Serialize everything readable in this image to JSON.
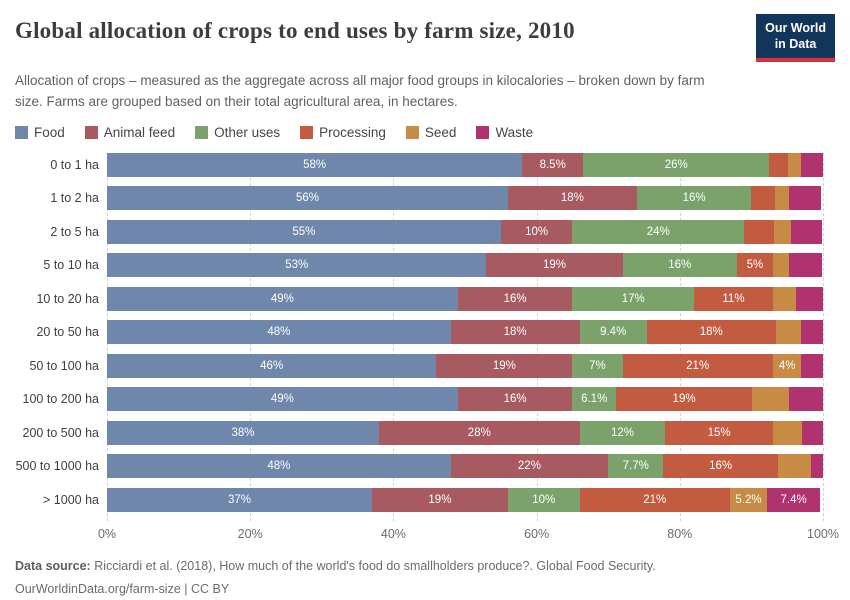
{
  "header": {
    "title": "Global allocation of crops to end uses by farm size, 2010",
    "subtitle": "Allocation of crops – measured as the aggregate across all major food groups in kilocalories – broken down by farm size. Farms are grouped based on their total agricultural area, in hectares.",
    "logo_line1": "Our World",
    "logo_line2": "in Data",
    "logo_bg": "#12355b",
    "logo_underline": "#d9303e"
  },
  "footer": {
    "source_label": "Data source:",
    "source_text": "Ricciardi et al. (2018), How much of the world's food do smallholders produce?. Global Food Security.",
    "attribution": "OurWorldinData.org/farm-size | CC BY"
  },
  "chart_data": {
    "type": "bar",
    "orientation": "horizontal-stacked",
    "title": "Global allocation of crops to end uses by farm size, 2010",
    "xlabel": "",
    "ylabel": "",
    "xlim": [
      0,
      100
    ],
    "grid": "dashed-vertical",
    "legend_position": "top",
    "x_ticks": [
      "0%",
      "20%",
      "40%",
      "60%",
      "80%",
      "100%"
    ],
    "series": [
      {
        "name": "Food",
        "color": "#6f87ab"
      },
      {
        "name": "Animal feed",
        "color": "#a75a60"
      },
      {
        "name": "Other uses",
        "color": "#7ba26a"
      },
      {
        "name": "Processing",
        "color": "#c35b40"
      },
      {
        "name": "Seed",
        "color": "#c78b46"
      },
      {
        "name": "Waste",
        "color": "#b0336f"
      }
    ],
    "categories": [
      "0 to 1 ha",
      "1 to 2 ha",
      "2 to 5 ha",
      "5 to 10 ha",
      "10 to 20 ha",
      "20 to 50 ha",
      "50 to 100 ha",
      "100 to 200 ha",
      "200 to 500 ha",
      "500 to 1000 ha",
      "> 1000 ha"
    ],
    "rows": [
      {
        "category": "0 to 1 ha",
        "segments": [
          {
            "value": 58,
            "label": "58%"
          },
          {
            "value": 8.5,
            "label": "8.5%"
          },
          {
            "value": 26,
            "label": "26%"
          },
          {
            "value": 2.6,
            "label": ""
          },
          {
            "value": 1.8,
            "label": ""
          },
          {
            "value": 3.1,
            "label": ""
          }
        ]
      },
      {
        "category": "1 to 2 ha",
        "segments": [
          {
            "value": 56,
            "label": "56%"
          },
          {
            "value": 18,
            "label": "18%"
          },
          {
            "value": 16,
            "label": "16%"
          },
          {
            "value": 3.3,
            "label": ""
          },
          {
            "value": 2.0,
            "label": ""
          },
          {
            "value": 4.4,
            "label": ""
          }
        ]
      },
      {
        "category": "2 to 5 ha",
        "segments": [
          {
            "value": 55,
            "label": "55%"
          },
          {
            "value": 10,
            "label": "10%"
          },
          {
            "value": 24,
            "label": "24%"
          },
          {
            "value": 4.2,
            "label": ""
          },
          {
            "value": 2.3,
            "label": ""
          },
          {
            "value": 4.4,
            "label": ""
          }
        ]
      },
      {
        "category": "5 to 10 ha",
        "segments": [
          {
            "value": 53,
            "label": "53%"
          },
          {
            "value": 19,
            "label": "19%"
          },
          {
            "value": 16,
            "label": "16%"
          },
          {
            "value": 5,
            "label": "5%"
          },
          {
            "value": 2.3,
            "label": ""
          },
          {
            "value": 4.6,
            "label": ""
          }
        ]
      },
      {
        "category": "10 to 20 ha",
        "segments": [
          {
            "value": 49,
            "label": "49%"
          },
          {
            "value": 16,
            "label": "16%"
          },
          {
            "value": 17,
            "label": "17%"
          },
          {
            "value": 11,
            "label": "11%"
          },
          {
            "value": 3.2,
            "label": ""
          },
          {
            "value": 3.8,
            "label": ""
          }
        ]
      },
      {
        "category": "20 to 50 ha",
        "segments": [
          {
            "value": 48,
            "label": "48%"
          },
          {
            "value": 18,
            "label": "18%"
          },
          {
            "value": 9.4,
            "label": "9.4%"
          },
          {
            "value": 18,
            "label": "18%"
          },
          {
            "value": 3.5,
            "label": ""
          },
          {
            "value": 3.1,
            "label": ""
          }
        ]
      },
      {
        "category": "50 to 100 ha",
        "segments": [
          {
            "value": 46,
            "label": "46%"
          },
          {
            "value": 19,
            "label": "19%"
          },
          {
            "value": 7,
            "label": "7%"
          },
          {
            "value": 21,
            "label": "21%"
          },
          {
            "value": 4,
            "label": "4%"
          },
          {
            "value": 3.0,
            "label": ""
          }
        ]
      },
      {
        "category": "100 to 200 ha",
        "segments": [
          {
            "value": 49,
            "label": "49%"
          },
          {
            "value": 16,
            "label": "16%"
          },
          {
            "value": 6.1,
            "label": "6.1%"
          },
          {
            "value": 19,
            "label": "19%"
          },
          {
            "value": 5.2,
            "label": ""
          },
          {
            "value": 4.7,
            "label": ""
          }
        ]
      },
      {
        "category": "200 to 500 ha",
        "segments": [
          {
            "value": 38,
            "label": "38%"
          },
          {
            "value": 28,
            "label": "28%"
          },
          {
            "value": 12,
            "label": "12%"
          },
          {
            "value": 15,
            "label": "15%"
          },
          {
            "value": 4.1,
            "label": ""
          },
          {
            "value": 2.9,
            "label": ""
          }
        ]
      },
      {
        "category": "500 to 1000 ha",
        "segments": [
          {
            "value": 48,
            "label": "48%"
          },
          {
            "value": 22,
            "label": "22%"
          },
          {
            "value": 7.7,
            "label": "7.7%"
          },
          {
            "value": 16,
            "label": "16%"
          },
          {
            "value": 4.6,
            "label": ""
          },
          {
            "value": 1.7,
            "label": ""
          }
        ]
      },
      {
        "category": "> 1000 ha",
        "segments": [
          {
            "value": 37,
            "label": "37%"
          },
          {
            "value": 19,
            "label": "19%"
          },
          {
            "value": 10,
            "label": "10%"
          },
          {
            "value": 21,
            "label": "21%"
          },
          {
            "value": 5.2,
            "label": "5.2%"
          },
          {
            "value": 7.4,
            "label": "7.4%"
          }
        ]
      }
    ]
  }
}
